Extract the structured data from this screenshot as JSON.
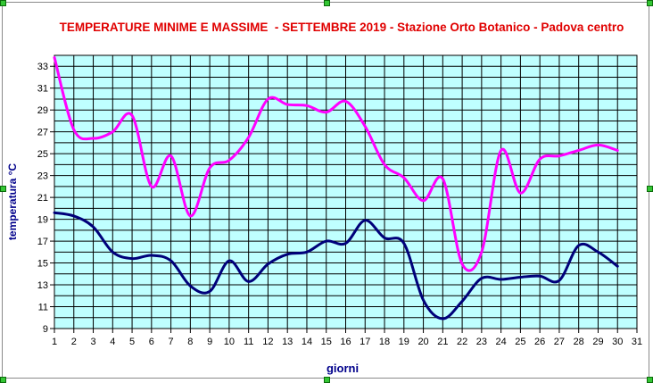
{
  "chart_data": {
    "type": "line",
    "title": "TEMPERATURE MINIME E MASSIME  - SETTEMBRE 2019 - Stazione Orto Botanico - Padova centro",
    "xlabel": "giorni",
    "ylabel": "temperatura  °C",
    "xlim": [
      1,
      31
    ],
    "ylim": [
      9,
      34
    ],
    "xticks": [
      "1",
      "2",
      "3",
      "4",
      "5",
      "6",
      "7",
      "8",
      "9",
      "10",
      "11",
      "12",
      "13",
      "14",
      "15",
      "16",
      "17",
      "18",
      "19",
      "20",
      "21",
      "22",
      "23",
      "24",
      "25",
      "26",
      "27",
      "28",
      "29",
      "30",
      "31"
    ],
    "yticks": [
      "9",
      "11",
      "13",
      "15",
      "17",
      "19",
      "21",
      "23",
      "25",
      "27",
      "29",
      "31",
      "33"
    ],
    "grid": true,
    "plot_background": "#bfffff",
    "series": [
      {
        "color": "#ff00ff",
        "x": [
          1,
          2,
          3,
          4,
          5,
          6,
          7,
          8,
          9,
          10,
          11,
          12,
          13,
          14,
          15,
          16,
          17,
          18,
          19,
          20,
          21,
          22,
          23,
          24,
          25,
          26,
          27,
          28,
          29,
          30
        ],
        "values": [
          33.8,
          27.2,
          26.4,
          27.0,
          28.5,
          22.0,
          24.8,
          19.3,
          23.7,
          24.4,
          26.5,
          30.0,
          29.5,
          29.4,
          28.8,
          29.8,
          27.5,
          24.0,
          22.8,
          20.7,
          22.7,
          14.9,
          16.0,
          25.3,
          21.4,
          24.5,
          24.8,
          25.3,
          25.8,
          25.3
        ]
      },
      {
        "color": "#00007a",
        "x": [
          1,
          2,
          3,
          4,
          5,
          6,
          7,
          8,
          9,
          10,
          11,
          12,
          13,
          14,
          15,
          16,
          17,
          18,
          19,
          20,
          21,
          22,
          23,
          24,
          25,
          26,
          27,
          28,
          29,
          30
        ],
        "values": [
          19.6,
          19.3,
          18.3,
          16.0,
          15.4,
          15.7,
          15.2,
          12.9,
          12.4,
          15.2,
          13.3,
          14.9,
          15.8,
          16.0,
          17.0,
          16.8,
          18.9,
          17.3,
          16.8,
          11.6,
          9.9,
          11.5,
          13.6,
          13.5,
          13.7,
          13.8,
          13.4,
          16.6,
          16.0,
          14.7
        ]
      }
    ]
  }
}
